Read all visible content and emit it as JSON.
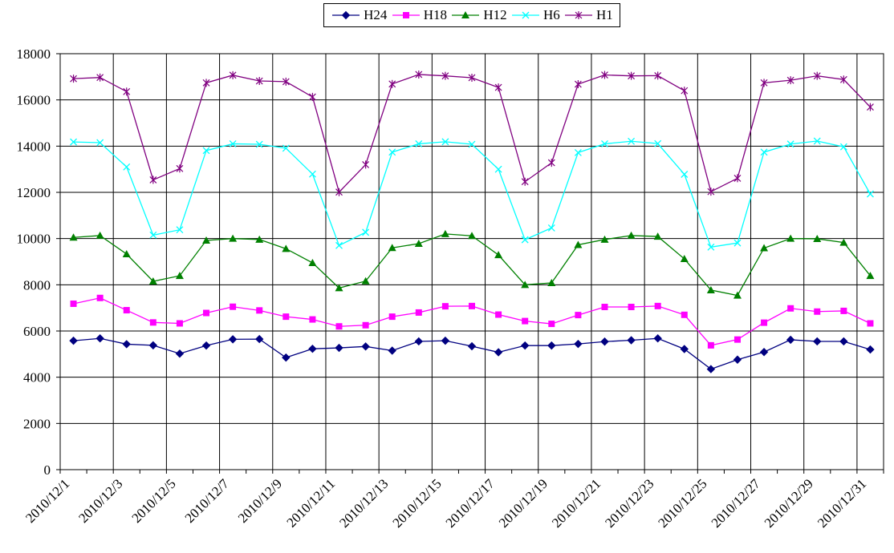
{
  "chart_data": {
    "type": "line",
    "title": "",
    "xlabel": "",
    "ylabel": "",
    "ylim": [
      0,
      18000
    ],
    "yticks": [
      0,
      2000,
      4000,
      6000,
      8000,
      10000,
      12000,
      14000,
      16000,
      18000
    ],
    "grid": true,
    "legend_position": "top-center",
    "x_tick_labels": [
      "2010/12/1",
      "2010/12/3",
      "2010/12/5",
      "2010/12/7",
      "2010/12/9",
      "2010/12/11",
      "2010/12/13",
      "2010/12/15",
      "2010/12/17",
      "2010/12/19",
      "2010/12/21",
      "2010/12/23",
      "2010/12/25",
      "2010/12/27",
      "2010/12/29",
      "2010/12/31"
    ],
    "categories": [
      "2010/12/1",
      "2010/12/2",
      "2010/12/3",
      "2010/12/4",
      "2010/12/5",
      "2010/12/6",
      "2010/12/7",
      "2010/12/8",
      "2010/12/9",
      "2010/12/10",
      "2010/12/11",
      "2010/12/12",
      "2010/12/13",
      "2010/12/14",
      "2010/12/15",
      "2010/12/16",
      "2010/12/17",
      "2010/12/18",
      "2010/12/19",
      "2010/12/20",
      "2010/12/21",
      "2010/12/22",
      "2010/12/23",
      "2010/12/24",
      "2010/12/25",
      "2010/12/26",
      "2010/12/27",
      "2010/12/28",
      "2010/12/29",
      "2010/12/30",
      "2010/12/31"
    ],
    "series": [
      {
        "name": "H24",
        "color": "#000080",
        "marker": "diamond",
        "values": [
          5580,
          5680,
          5430,
          5380,
          5020,
          5370,
          5640,
          5650,
          4850,
          5230,
          5270,
          5330,
          5150,
          5550,
          5580,
          5340,
          5080,
          5370,
          5370,
          5440,
          5540,
          5600,
          5680,
          5220,
          4350,
          4760,
          5090,
          5620,
          5550,
          5550,
          5200
        ]
      },
      {
        "name": "H18",
        "color": "#ff00ff",
        "marker": "square",
        "values": [
          7180,
          7430,
          6900,
          6370,
          6330,
          6780,
          7050,
          6890,
          6620,
          6500,
          6200,
          6250,
          6620,
          6800,
          7070,
          7080,
          6710,
          6430,
          6310,
          6690,
          7040,
          7040,
          7080,
          6700,
          5380,
          5630,
          6360,
          6980,
          6840,
          6870,
          6330
        ]
      },
      {
        "name": "H12",
        "color": "#008000",
        "marker": "triangle",
        "values": [
          10050,
          10130,
          9330,
          8150,
          8390,
          9920,
          10000,
          9960,
          9560,
          8950,
          7860,
          8160,
          9600,
          9780,
          10200,
          10120,
          9290,
          8000,
          8080,
          9730,
          9960,
          10130,
          10090,
          9120,
          7770,
          7540,
          9590,
          10000,
          9990,
          9830,
          8390
        ]
      },
      {
        "name": "H6",
        "color": "#00ffff",
        "marker": "x",
        "values": [
          14180,
          14150,
          13100,
          10150,
          10380,
          13810,
          14100,
          14080,
          13910,
          12790,
          9700,
          10270,
          13740,
          14100,
          14190,
          14080,
          13000,
          9950,
          10460,
          13720,
          14100,
          14210,
          14110,
          12780,
          9630,
          9810,
          13740,
          14090,
          14220,
          13970,
          11930
        ]
      },
      {
        "name": "H1",
        "color": "#800080",
        "marker": "star",
        "values": [
          16920,
          16970,
          16360,
          12540,
          13030,
          16740,
          17070,
          16820,
          16790,
          16130,
          12010,
          13200,
          16690,
          17100,
          17040,
          16960,
          16540,
          12460,
          13280,
          16680,
          17080,
          17040,
          17050,
          16400,
          12030,
          12610,
          16740,
          16850,
          17040,
          16880,
          15690
        ]
      }
    ]
  }
}
